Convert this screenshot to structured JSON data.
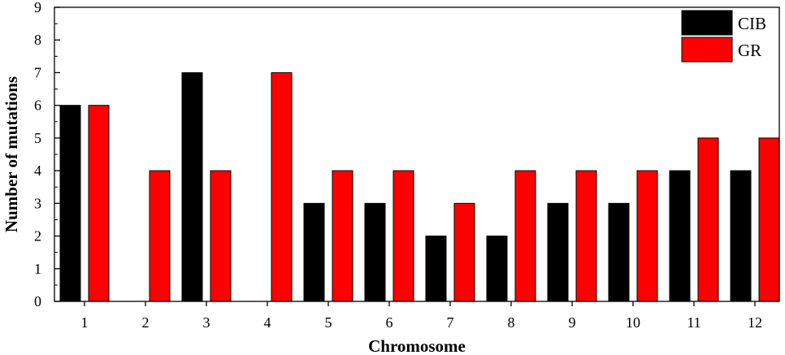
{
  "chart_data": {
    "type": "bar",
    "title": "",
    "xlabel": "Chromosome",
    "ylabel": "Number of mutations",
    "categories": [
      "1",
      "2",
      "3",
      "4",
      "5",
      "6",
      "7",
      "8",
      "9",
      "10",
      "11",
      "12"
    ],
    "ylim": [
      0,
      9
    ],
    "yticks": [
      "0",
      "1",
      "2",
      "3",
      "4",
      "5",
      "6",
      "7",
      "8",
      "9"
    ],
    "series": [
      {
        "name": "CIB",
        "color": "#000000",
        "values": [
          6,
          0,
          7,
          0,
          3,
          3,
          2,
          2,
          3,
          3,
          4,
          4
        ]
      },
      {
        "name": "GR",
        "color": "#ff0000",
        "values": [
          6,
          4,
          4,
          7,
          4,
          4,
          3,
          4,
          4,
          4,
          5,
          5
        ]
      }
    ],
    "legend": "top-right",
    "grid": false
  }
}
